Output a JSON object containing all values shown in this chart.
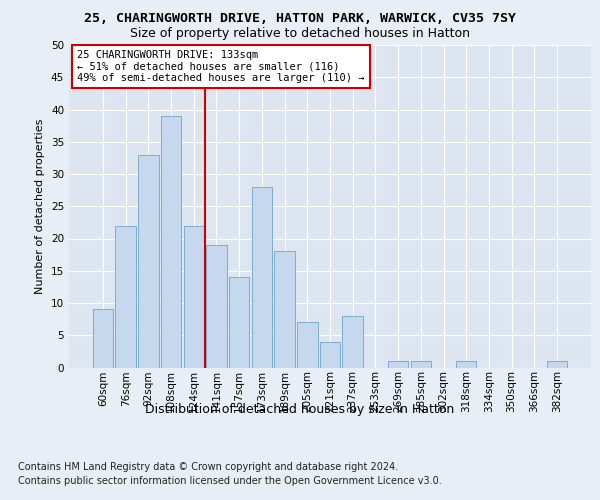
{
  "title1": "25, CHARINGWORTH DRIVE, HATTON PARK, WARWICK, CV35 7SY",
  "title2": "Size of property relative to detached houses in Hatton",
  "xlabel": "Distribution of detached houses by size in Hatton",
  "ylabel": "Number of detached properties",
  "categories": [
    "60sqm",
    "76sqm",
    "92sqm",
    "108sqm",
    "124sqm",
    "141sqm",
    "157sqm",
    "173sqm",
    "189sqm",
    "205sqm",
    "221sqm",
    "237sqm",
    "253sqm",
    "269sqm",
    "285sqm",
    "302sqm",
    "318sqm",
    "334sqm",
    "350sqm",
    "366sqm",
    "382sqm"
  ],
  "values": [
    9,
    22,
    33,
    39,
    22,
    19,
    14,
    28,
    18,
    7,
    4,
    8,
    0,
    1,
    1,
    0,
    1,
    0,
    0,
    0,
    1
  ],
  "bar_color": "#c5d8ee",
  "bar_edge_color": "#7aadce",
  "vline_x_index": 4.5,
  "vline_color": "#cc0000",
  "annotation_text": "25 CHARINGWORTH DRIVE: 133sqm\n← 51% of detached houses are smaller (116)\n49% of semi-detached houses are larger (110) →",
  "annotation_box_color": "white",
  "annotation_box_edge_color": "#cc0000",
  "ylim": [
    0,
    50
  ],
  "yticks": [
    0,
    5,
    10,
    15,
    20,
    25,
    30,
    35,
    40,
    45,
    50
  ],
  "footer1": "Contains HM Land Registry data © Crown copyright and database right 2024.",
  "footer2": "Contains public sector information licensed under the Open Government Licence v3.0.",
  "bg_color": "#e8eef5",
  "plot_bg_color": "#dde6f0",
  "grid_color": "#ffffff",
  "title1_fontsize": 9.5,
  "title2_fontsize": 9,
  "xlabel_fontsize": 9,
  "ylabel_fontsize": 8,
  "tick_fontsize": 7.5,
  "footer_fontsize": 7,
  "annot_fontsize": 7.5
}
